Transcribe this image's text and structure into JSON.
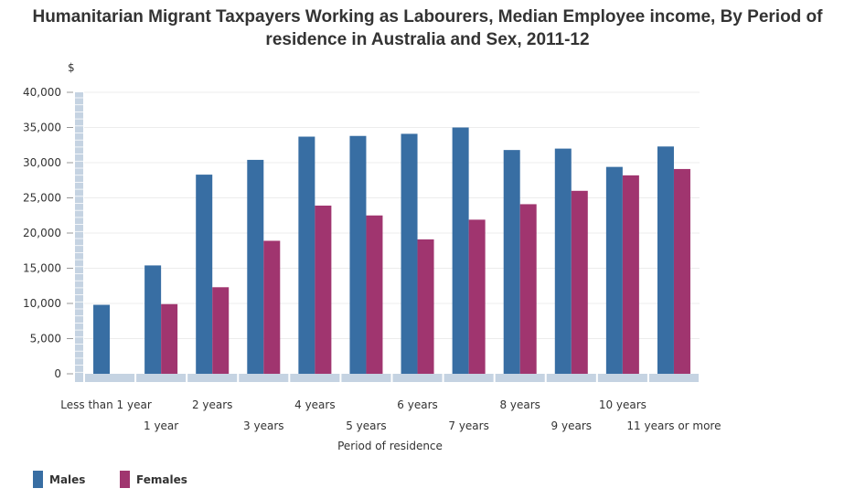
{
  "chart_data": {
    "type": "bar",
    "title_line1": "Humanitarian Migrant Taxpayers Working as Labourers, Median Employee income, By Period of",
    "title_line2": "residence in Australia and Sex, 2011-12",
    "ylabel": "$",
    "xlabel": "Period of residence",
    "ylim": [
      0,
      40000
    ],
    "yticks": [
      "0",
      "5,000",
      "10,000",
      "15,000",
      "20,000",
      "25,000",
      "30,000",
      "35,000",
      "40,000"
    ],
    "ytick_values": [
      0,
      5000,
      10000,
      15000,
      20000,
      25000,
      30000,
      35000,
      40000
    ],
    "categories": [
      "Less than 1 year",
      "1 year",
      "2 years",
      "3 years",
      "4 years",
      "5 years",
      "6 years",
      "7 years",
      "8 years",
      "9 years",
      "10 years",
      "11 years or more"
    ],
    "series": [
      {
        "name": "Males",
        "color": "#386ea3",
        "values": [
          9800,
          15400,
          28300,
          30400,
          33700,
          33800,
          34100,
          35000,
          31800,
          32000,
          29400,
          32300
        ]
      },
      {
        "name": "Females",
        "color": "#a0356f",
        "values": [
          null,
          9900,
          12300,
          18900,
          23900,
          22500,
          19100,
          21900,
          24100,
          26000,
          28200,
          29100
        ]
      }
    ],
    "grid": true,
    "legend_position": "bottom-left"
  },
  "legend": {
    "males_label": "Males",
    "females_label": "Females"
  }
}
